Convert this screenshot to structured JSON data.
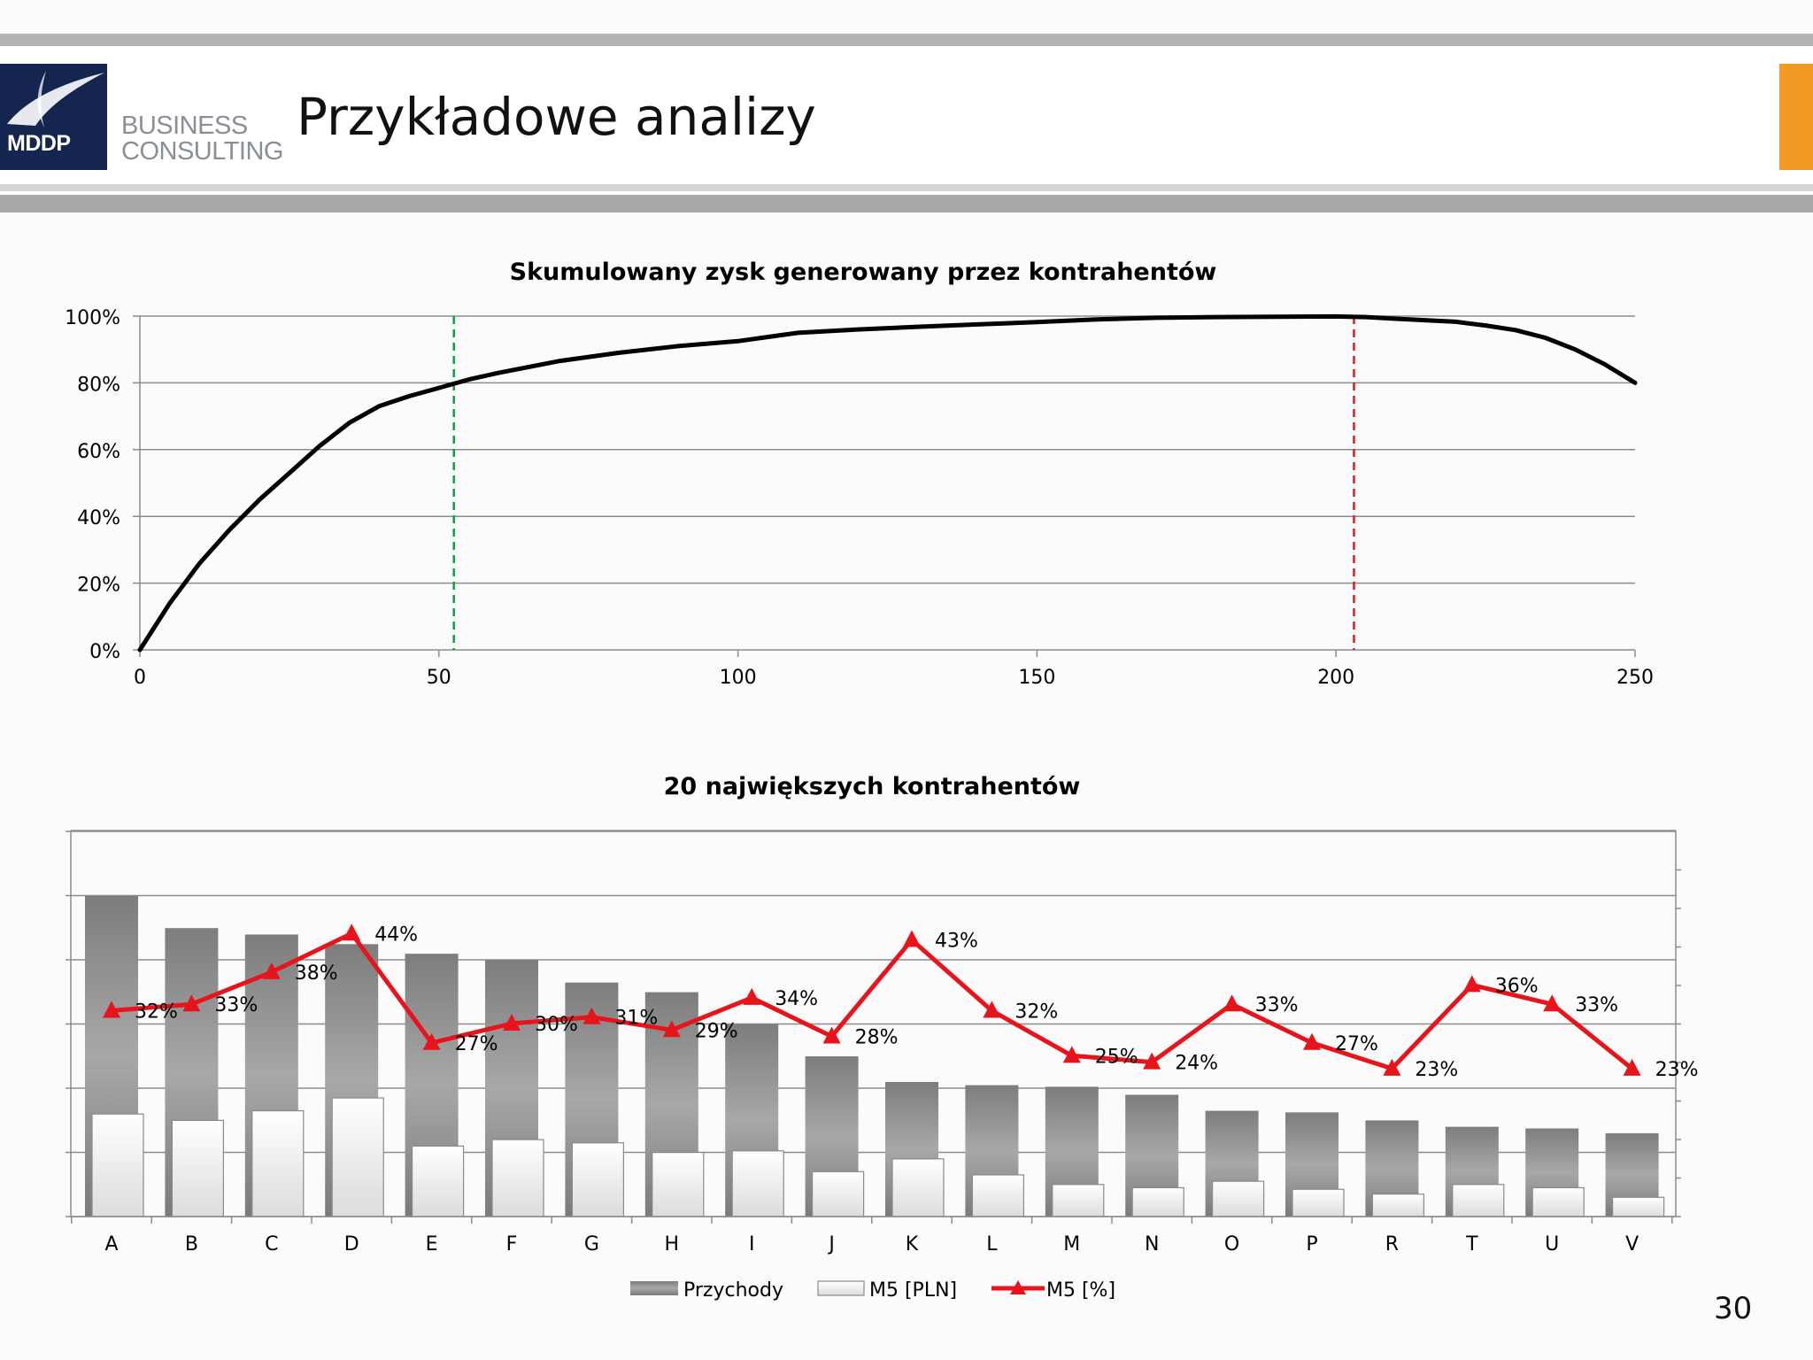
{
  "header": {
    "title": "Przykładowe analizy",
    "logo_mark": "MDDP",
    "logo_line1": "BUSINESS",
    "logo_line2": "CONSULTING",
    "accent": "#f39a24",
    "logo_color": "#14254f"
  },
  "page_number": "30",
  "chart_data": [
    {
      "type": "line",
      "title": "Skumulowany zysk generowany przez kontrahentów",
      "xlabel": "",
      "ylabel": "",
      "xlim": [
        0,
        250
      ],
      "ylim": [
        0,
        100
      ],
      "x_ticks": [
        0,
        50,
        100,
        150,
        200,
        250
      ],
      "y_ticks": [
        "0%",
        "20%",
        "40%",
        "60%",
        "80%",
        "100%"
      ],
      "y_tick_values": [
        0,
        20,
        40,
        60,
        80,
        100
      ],
      "grid": true,
      "series": [
        {
          "color": "#000000",
          "x": [
            0,
            5,
            10,
            15,
            20,
            25,
            30,
            35,
            40,
            45,
            50,
            55,
            60,
            70,
            80,
            90,
            100,
            110,
            120,
            130,
            140,
            150,
            160,
            170,
            180,
            190,
            200,
            205,
            210,
            220,
            225,
            230,
            235,
            240,
            245,
            250
          ],
          "y": [
            0,
            14,
            26,
            36,
            45,
            53,
            61,
            68,
            73,
            76,
            78.5,
            81,
            83,
            86.5,
            89,
            91,
            92.5,
            95,
            96,
            96.8,
            97.5,
            98.2,
            99,
            99.5,
            99.7,
            99.8,
            99.9,
            99.7,
            99.2,
            98.3,
            97.2,
            95.8,
            93.5,
            90,
            85.5,
            80
          ]
        }
      ],
      "markers": [
        {
          "x": 52.5,
          "color": "#0aa33b",
          "style": "dashed"
        },
        {
          "x": 203,
          "color": "#e01b1b",
          "style": "dashed"
        }
      ]
    },
    {
      "type": "bar",
      "title": "20 największych kontrahentów",
      "categories": [
        "A",
        "B",
        "C",
        "D",
        "E",
        "F",
        "G",
        "H",
        "I",
        "J",
        "K",
        "L",
        "M",
        "N",
        "O",
        "P",
        "R",
        "T",
        "U",
        "V"
      ],
      "legend_position": "bottom",
      "grid": true,
      "y_axis_labels_visible": false,
      "series": [
        {
          "name": "Przychody",
          "kind": "bar",
          "color": "#9a9a9a",
          "values": [
            100,
            90,
            88,
            85,
            82,
            80,
            73,
            70,
            60,
            50,
            42,
            41,
            40.5,
            38,
            33,
            32.5,
            30,
            28,
            27.5,
            26
          ]
        },
        {
          "name": "M5 [PLN]",
          "kind": "bar",
          "color": "#f2f2f2",
          "values": [
            32,
            30,
            33,
            37,
            22,
            24,
            23,
            20,
            20.5,
            14,
            18,
            13,
            10,
            9,
            11,
            8.5,
            7,
            10,
            9,
            6
          ]
        },
        {
          "name": "M5 [%]",
          "kind": "line",
          "color": "#e8141c",
          "marker": "triangle",
          "values": [
            32,
            33,
            38,
            44,
            27,
            30,
            31,
            29,
            34,
            28,
            43,
            32,
            25,
            24,
            33,
            27,
            23,
            36,
            33,
            23
          ],
          "labels": [
            "32%",
            "33%",
            "38%",
            "44%",
            "27%",
            "30%",
            "31%",
            "29%",
            "34%",
            "28%",
            "43%",
            "32%",
            "25%",
            "24%",
            "33%",
            "27%",
            "23%",
            "36%",
            "33%",
            "23%"
          ]
        }
      ]
    }
  ]
}
